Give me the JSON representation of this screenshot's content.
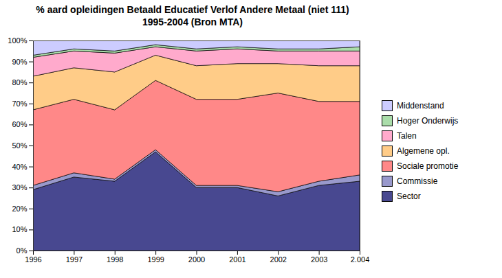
{
  "chart_data": {
    "type": "area",
    "title": "% aard opleidingen Betaald Educatief Verlof Andere Metaal (niet 111)\n1995-2004 (Bron MTA)",
    "x": [
      1996,
      1997,
      1998,
      1999,
      2000,
      2001,
      2002,
      2003,
      2004
    ],
    "series": [
      {
        "name": "Sector",
        "color": "#484890",
        "values": [
          29,
          35,
          33,
          47,
          30,
          30,
          26,
          31,
          33
        ]
      },
      {
        "name": "Commissie",
        "color": "#9999cc",
        "values": [
          2,
          2,
          1,
          1,
          1,
          1,
          2,
          2,
          3
        ]
      },
      {
        "name": "Sociale promotie",
        "color": "#ff8888",
        "values": [
          36,
          35,
          33,
          33,
          41,
          41,
          47,
          38,
          35
        ]
      },
      {
        "name": "Algemene opl.",
        "color": "#ffcc88",
        "values": [
          16,
          15,
          18,
          12,
          16,
          17,
          14,
          17,
          17
        ]
      },
      {
        "name": "Talen",
        "color": "#ffaacc",
        "values": [
          9,
          8,
          9,
          4,
          7,
          7,
          6,
          7,
          7
        ]
      },
      {
        "name": "Hoger Onderwijs",
        "color": "#aaddaa",
        "values": [
          1,
          1,
          1,
          1,
          1,
          1,
          1,
          1,
          2
        ]
      },
      {
        "name": "Middenstand",
        "color": "#ccccff",
        "values": [
          7,
          4,
          5,
          2,
          4,
          3,
          4,
          4,
          3
        ]
      }
    ],
    "stacked": true,
    "xlim": [
      1996,
      2004
    ],
    "xticks": [
      1996,
      1997,
      1998,
      1999,
      2000,
      2001,
      2002,
      2003,
      {
        "value": 2004,
        "label": "2.004"
      }
    ],
    "ylim": [
      0,
      100
    ],
    "yticks": [
      {
        "value": 0,
        "label": "0%"
      },
      {
        "value": 10,
        "label": "10%"
      },
      {
        "value": 20,
        "label": "20%"
      },
      {
        "value": 30,
        "label": "30%"
      },
      {
        "value": 40,
        "label": "40%"
      },
      {
        "value": 50,
        "label": "50%"
      },
      {
        "value": 60,
        "label": "60%"
      },
      {
        "value": 70,
        "label": "70%"
      },
      {
        "value": 80,
        "label": "80%"
      },
      {
        "value": 90,
        "label": "90%"
      },
      {
        "value": 100,
        "label": "100%"
      }
    ],
    "grid": true,
    "legend": "right"
  }
}
